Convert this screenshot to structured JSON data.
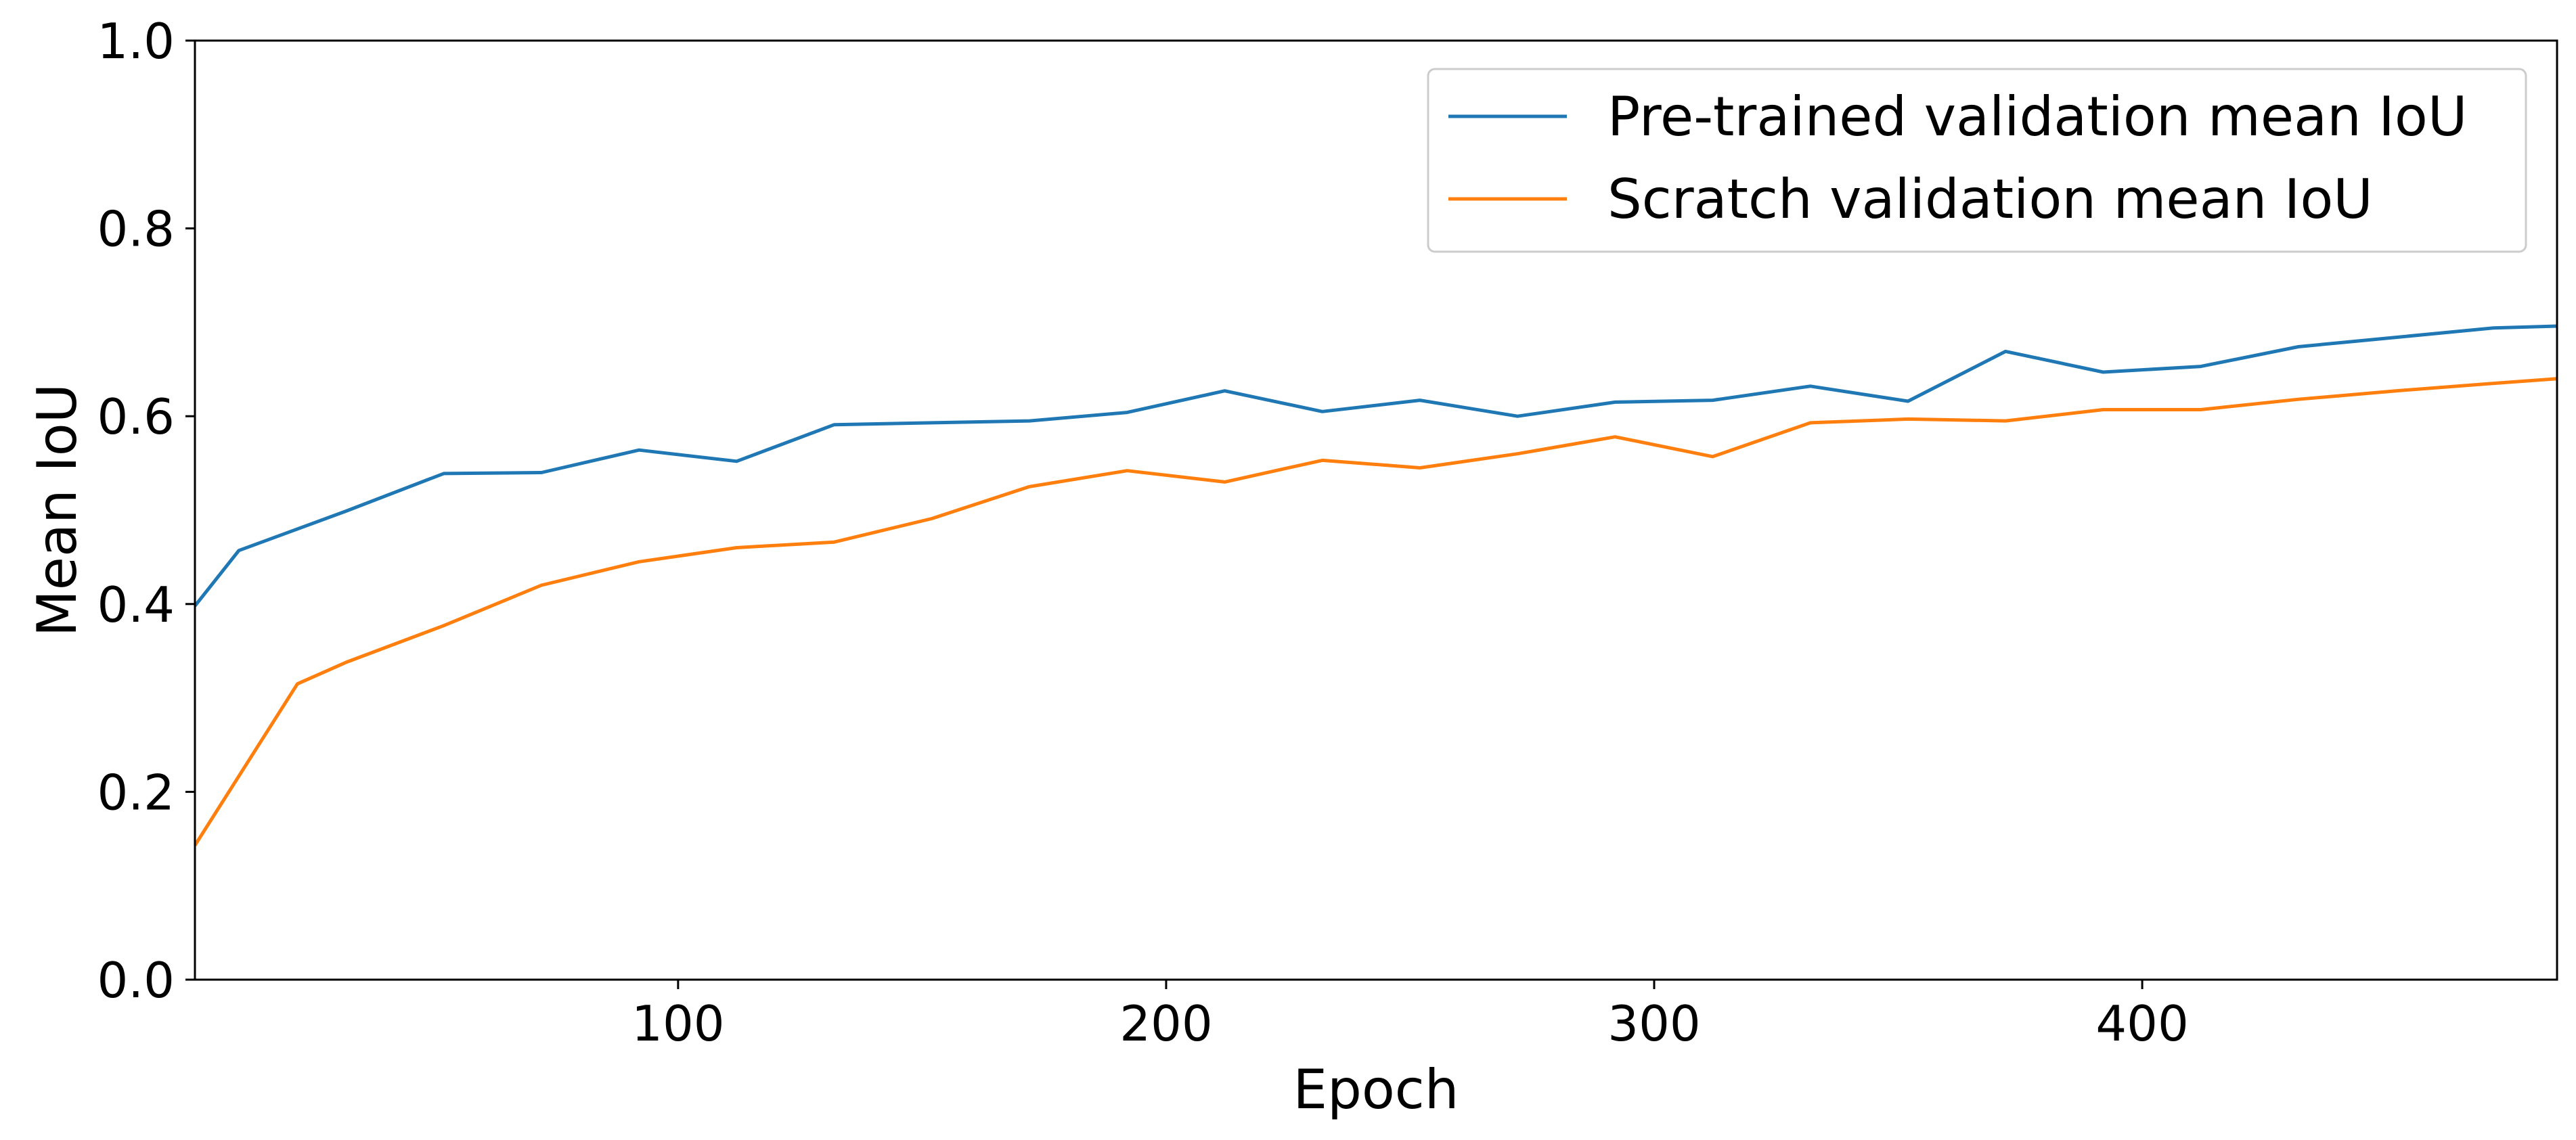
{
  "chart_data": {
    "type": "line",
    "title": "",
    "xlabel": "Epoch",
    "ylabel": "Mean IoU",
    "xlim": [
      1,
      485
    ],
    "ylim": [
      0.0,
      1.0
    ],
    "xticks": [
      100,
      200,
      300,
      400
    ],
    "xtick_labels": [
      "100",
      "200",
      "300",
      "400"
    ],
    "yticks": [
      0.0,
      0.2,
      0.4,
      0.6,
      0.8,
      1.0
    ],
    "ytick_labels": [
      "0.0",
      "0.2",
      "0.4",
      "0.6",
      "0.8",
      "1.0"
    ],
    "grid": false,
    "legend_position": "top-right",
    "series": [
      {
        "name": "Pre-trained validation mean IoU",
        "color": "#1f77b4",
        "x": [
          1,
          10,
          32,
          52,
          72,
          92,
          112,
          132,
          152,
          172,
          192,
          212,
          232,
          252,
          272,
          292,
          312,
          332,
          352,
          372,
          392,
          412,
          432,
          452,
          472,
          485
        ],
        "y": [
          0.398,
          0.457,
          0.499,
          0.539,
          0.54,
          0.564,
          0.552,
          0.591,
          0.593,
          0.595,
          0.604,
          0.627,
          0.605,
          0.617,
          0.6,
          0.615,
          0.617,
          0.632,
          0.616,
          0.669,
          0.647,
          0.653,
          0.674,
          0.684,
          0.694,
          0.696
        ]
      },
      {
        "name": "Scratch validation mean IoU",
        "color": "#ff7f0e",
        "x": [
          1,
          22,
          32,
          52,
          72,
          92,
          112,
          132,
          152,
          172,
          192,
          212,
          232,
          252,
          272,
          292,
          312,
          332,
          352,
          372,
          392,
          412,
          432,
          452,
          472,
          485
        ],
        "y": [
          0.143,
          0.315,
          0.338,
          0.377,
          0.42,
          0.445,
          0.46,
          0.466,
          0.491,
          0.525,
          0.542,
          0.53,
          0.553,
          0.545,
          0.56,
          0.578,
          0.557,
          0.593,
          0.597,
          0.595,
          0.607,
          0.607,
          0.618,
          0.627,
          0.635,
          0.64
        ]
      }
    ]
  }
}
